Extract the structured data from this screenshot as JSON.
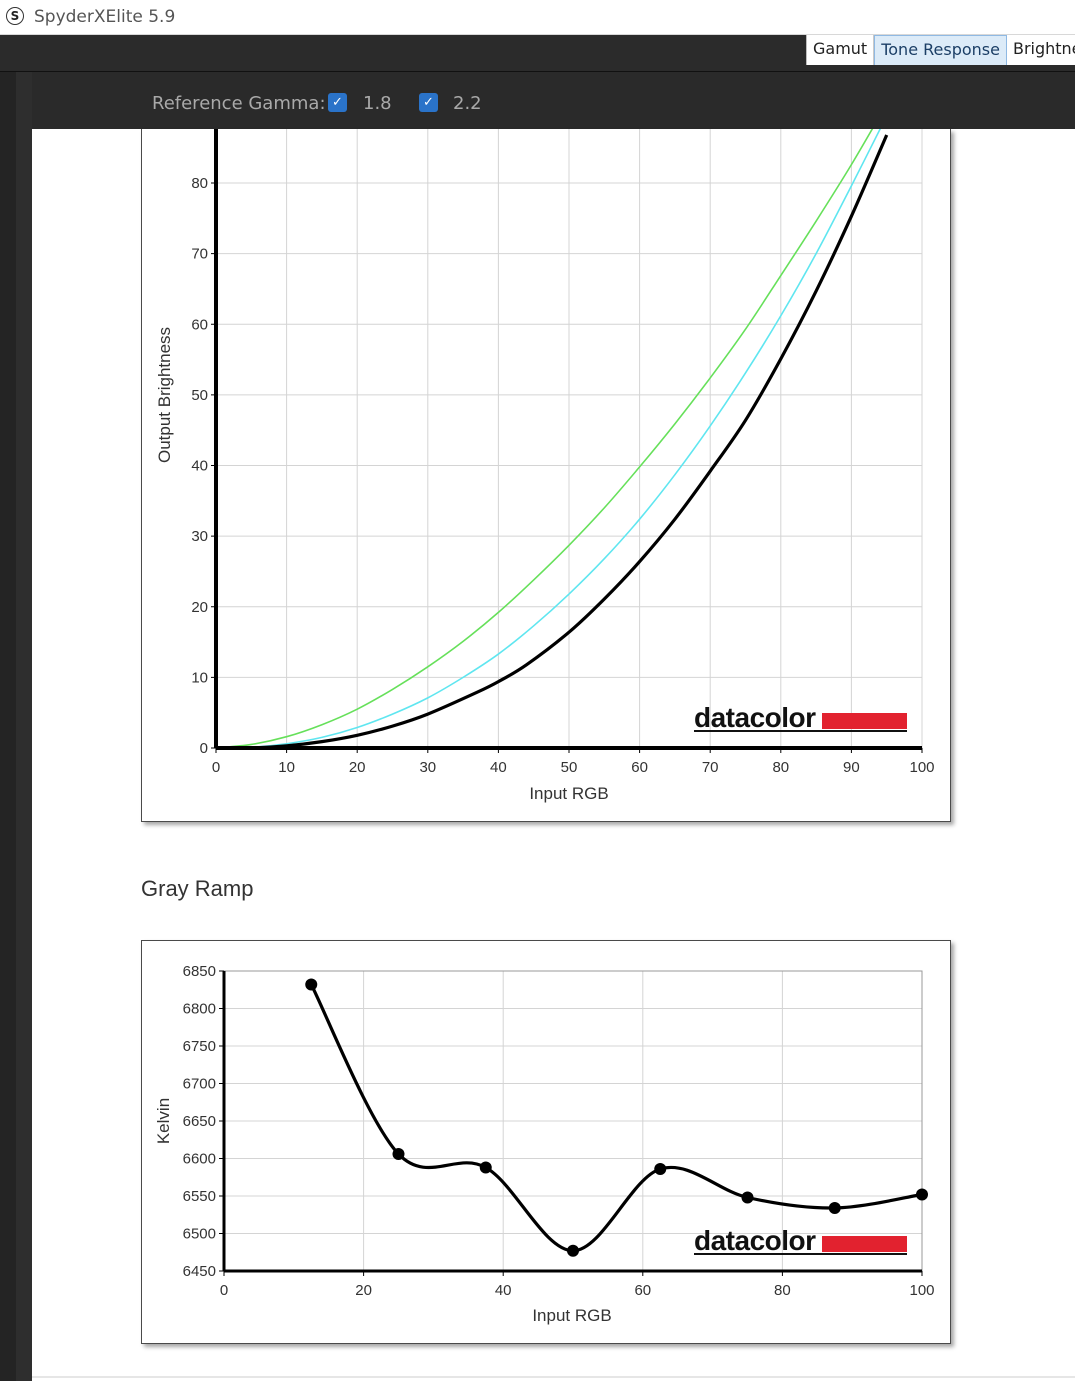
{
  "window": {
    "title": "SpyderXElite 5.9",
    "icon": "s-logo-icon"
  },
  "tabs": [
    {
      "label": "Gamut",
      "active": false
    },
    {
      "label": "Tone Response",
      "active": true
    },
    {
      "label": "Brightness",
      "active": false
    }
  ],
  "reference_gamma": {
    "label": "Reference Gamma:",
    "options": [
      {
        "label": "1.8",
        "checked": true,
        "color": "#66e05a"
      },
      {
        "label": "2.2",
        "checked": true,
        "color": "#5fe6f0"
      }
    ]
  },
  "gray_ramp_title": "Gray Ramp",
  "chart_data": [
    {
      "type": "line",
      "xlabel": "Input RGB",
      "ylabel": "Output Brightness",
      "xlim": [
        0,
        100
      ],
      "ylim": [
        0,
        80
      ],
      "xticks": [
        "0",
        "10",
        "20",
        "30",
        "40",
        "50",
        "60",
        "70",
        "80",
        "90",
        "100"
      ],
      "yticks": [
        "0",
        "10",
        "20",
        "30",
        "40",
        "50",
        "60",
        "70",
        "80"
      ],
      "grid": true,
      "watermark": "datacolor",
      "series": [
        {
          "name": "1.8",
          "color": "#66e05a",
          "x": [
            0,
            5,
            10,
            15,
            20,
            25,
            30,
            35,
            40,
            45,
            50,
            55,
            60,
            65,
            70,
            75,
            80,
            85,
            90,
            95
          ],
          "y": [
            0,
            0.5,
            1.6,
            3.3,
            5.5,
            8.3,
            11.5,
            15.1,
            19.2,
            23.8,
            28.7,
            34.0,
            39.8,
            45.9,
            52.4,
            59.3,
            66.9,
            74.6,
            82.6,
            91.2
          ]
        },
        {
          "name": "2.2",
          "color": "#5fe6f0",
          "x": [
            0,
            5,
            10,
            15,
            20,
            25,
            30,
            35,
            40,
            45,
            50,
            55,
            60,
            65,
            70,
            75,
            80,
            85,
            90,
            95
          ],
          "y": [
            0,
            0.1,
            0.6,
            1.5,
            2.9,
            4.8,
            7.1,
            10.0,
            13.3,
            17.3,
            21.8,
            26.8,
            32.4,
            38.7,
            45.6,
            53.1,
            61.2,
            70.0,
            79.6,
            89.5
          ]
        },
        {
          "x": [
            0,
            5,
            10,
            15,
            20,
            25,
            30,
            37,
            40,
            44,
            50,
            55,
            60,
            65,
            70,
            75,
            80,
            85,
            90,
            95
          ],
          "y": [
            0,
            0,
            0.3,
            0.9,
            1.8,
            3.1,
            4.8,
            7.9,
            9.4,
            11.8,
            16.4,
            21.1,
            26.4,
            32.4,
            39.2,
            46.4,
            55.1,
            64.7,
            75.3,
            86.8
          ]
        }
      ]
    },
    {
      "type": "line",
      "xlabel": "Input RGB",
      "ylabel": "Kelvin",
      "xlim": [
        0,
        100
      ],
      "ylim": [
        6450,
        6850
      ],
      "xticks": [
        "0",
        "20",
        "40",
        "60",
        "80",
        "100"
      ],
      "yticks": [
        "6450",
        "6500",
        "6550",
        "6600",
        "6650",
        "6700",
        "6750",
        "6800",
        "6850"
      ],
      "grid": true,
      "watermark": "datacolor",
      "series": [
        {
          "x": [
            12.5,
            25,
            37.5,
            50,
            62.5,
            75,
            87.5,
            100
          ],
          "y": [
            6832,
            6606,
            6588,
            6477,
            6586,
            6548,
            6534,
            6552
          ]
        }
      ]
    }
  ]
}
